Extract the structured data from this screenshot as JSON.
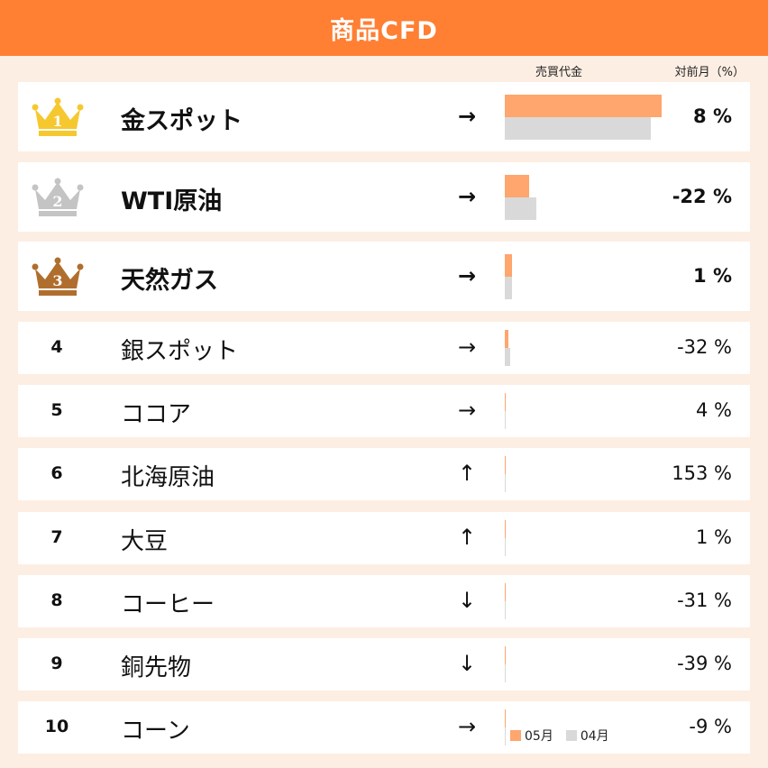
{
  "header": {
    "title": "商品CFD"
  },
  "columns": {
    "trade_value": "売買代金",
    "change": "対前月（%）"
  },
  "colors": {
    "header_bg": "#ff7f33",
    "bar_current": "#ffa56e",
    "bar_previous": "#d9d9d9",
    "gold": "#f6c82f",
    "silver": "#c4c4c4",
    "bronze": "#b06e2e"
  },
  "chart_data": {
    "type": "bar",
    "categories": [
      "金スポット",
      "WTI原油",
      "天然ガス",
      "銀スポット",
      "ココア",
      "北海原油",
      "大豆",
      "コーヒー",
      "銅先物",
      "コーン"
    ],
    "series": [
      {
        "name": "05月",
        "values": [
          100,
          15.5,
          4.5,
          2.2,
          0.5,
          0.5,
          0.4,
          0.4,
          0.4,
          0.3
        ]
      },
      {
        "name": "04月",
        "values": [
          93,
          20,
          4.5,
          3.2,
          0.5,
          0.2,
          0.4,
          0.6,
          0.6,
          0.4
        ]
      }
    ],
    "legend_position": "bottom-right"
  },
  "rows": [
    {
      "rank": "1",
      "name": "金スポット",
      "arrow": "→",
      "pct": "8 %"
    },
    {
      "rank": "2",
      "name": "WTI原油",
      "arrow": "→",
      "pct": "-22 %"
    },
    {
      "rank": "3",
      "name": "天然ガス",
      "arrow": "→",
      "pct": "1 %"
    },
    {
      "rank": "4",
      "name": "銀スポット",
      "arrow": "→",
      "pct": "-32 %"
    },
    {
      "rank": "5",
      "name": "ココア",
      "arrow": "→",
      "pct": "4 %"
    },
    {
      "rank": "6",
      "name": "北海原油",
      "arrow": "↑",
      "pct": "153 %"
    },
    {
      "rank": "7",
      "name": "大豆",
      "arrow": "↑",
      "pct": "1 %"
    },
    {
      "rank": "8",
      "name": "コーヒー",
      "arrow": "↓",
      "pct": "-31 %"
    },
    {
      "rank": "9",
      "name": "銅先物",
      "arrow": "↓",
      "pct": "-39 %"
    },
    {
      "rank": "10",
      "name": "コーン",
      "arrow": "→",
      "pct": "-9 %"
    }
  ],
  "legend": {
    "current": "05月",
    "previous": "04月"
  }
}
